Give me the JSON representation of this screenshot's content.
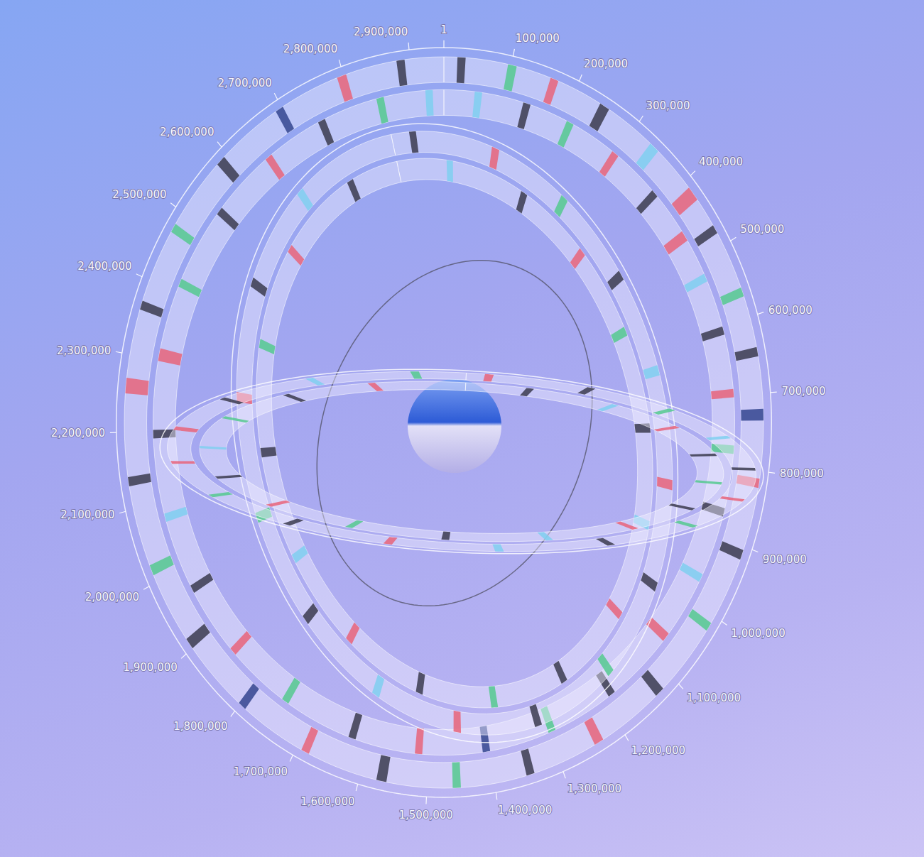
{
  "chart_data": {
    "type": "circular_genome",
    "xlim": [
      1,
      2950000
    ],
    "xticks": [
      1,
      {
        "value": 100000,
        "label": "100,000"
      },
      {
        "value": 200000,
        "label": "200,000"
      },
      {
        "value": 300000,
        "label": "300,000"
      },
      {
        "value": 400000,
        "label": "400,000"
      },
      {
        "value": 500000,
        "label": "500,000"
      },
      {
        "value": 600000,
        "label": "600,000"
      },
      {
        "value": 700000,
        "label": "700,000"
      },
      {
        "value": 800000,
        "label": "800,000"
      },
      {
        "value": 900000,
        "label": "900,000"
      },
      {
        "value": 1000000,
        "label": "1,000,000"
      },
      {
        "value": 1100000,
        "label": "1,100,000"
      },
      {
        "value": 1200000,
        "label": "1,200,000"
      },
      {
        "value": 1300000,
        "label": "1,300,000"
      },
      {
        "value": 1400000,
        "label": "1,400,000"
      },
      {
        "value": 1500000,
        "label": "1,500,000"
      },
      {
        "value": 1600000,
        "label": "1,600,000"
      },
      {
        "value": 1700000,
        "label": "1,700,000"
      },
      {
        "value": 1800000,
        "label": "1,800,000"
      },
      {
        "value": 1900000,
        "label": "1,900,000"
      },
      {
        "value": 2000000,
        "label": "2,000,000"
      },
      {
        "value": 2100000,
        "label": "2,100,000"
      },
      {
        "value": 2200000,
        "label": "2,200,000"
      },
      {
        "value": 2300000,
        "label": "2,300,000"
      },
      {
        "value": 2400000,
        "label": "2,400,000"
      },
      {
        "value": 2500000,
        "label": "2,500,000"
      },
      {
        "value": 2600000,
        "label": "2,600,000"
      },
      {
        "value": 2700000,
        "label": "2,700,000"
      },
      {
        "value": 2800000,
        "label": "2,800,000"
      },
      {
        "value": 2900000,
        "label": "2,900,000"
      }
    ],
    "rings": [
      {
        "tracks": [
          [
            [
              20000,
              32000,
              "#3b3b4f"
            ],
            [
              95000,
              108000,
              "#55c98f"
            ],
            [
              160000,
              172000,
              "#e8647a"
            ],
            [
              240000,
              255000,
              "#3b3b4f"
            ],
            [
              330000,
              345000,
              "#7fcff0"
            ],
            [
              410000,
              430000,
              "#e8647a"
            ],
            [
              470000,
              482000,
              "#3b3b4f"
            ],
            [
              560000,
              572000,
              "#55c98f"
            ],
            [
              640000,
              652000,
              "#3b3b4f"
            ],
            [
              720000,
              735000,
              "#34458f"
            ],
            [
              810000,
              822000,
              "#e8647a"
            ],
            [
              905000,
              918000,
              "#3b3b4f"
            ],
            [
              1010000,
              1022000,
              "#55c98f"
            ],
            [
              1120000,
              1134000,
              "#3b3b4f"
            ],
            [
              1230000,
              1244000,
              "#e8647a"
            ],
            [
              1340000,
              1352000,
              "#3b3b4f"
            ],
            [
              1450000,
              1462000,
              "#55c98f"
            ],
            [
              1560000,
              1575000,
              "#3b3b4f"
            ],
            [
              1680000,
              1692000,
              "#e8647a"
            ],
            [
              1790000,
              1802000,
              "#34458f"
            ],
            [
              1900000,
              1915000,
              "#3b3b4f"
            ],
            [
              2010000,
              2024000,
              "#55c98f"
            ],
            [
              2130000,
              2142000,
              "#3b3b4f"
            ],
            [
              2250000,
              2270000,
              "#e8647a"
            ],
            [
              2360000,
              2372000,
              "#3b3b4f"
            ],
            [
              2470000,
              2482000,
              "#55c98f"
            ],
            [
              2580000,
              2594000,
              "#3b3b4f"
            ],
            [
              2690000,
              2702000,
              "#34458f"
            ],
            [
              2790000,
              2804000,
              "#e8647a"
            ],
            [
              2880000,
              2892000,
              "#3b3b4f"
            ]
          ],
          [
            [
              50000,
              62000,
              "#7fcff0"
            ],
            [
              130000,
              142000,
              "#3b3b4f"
            ],
            [
              205000,
              217000,
              "#55c98f"
            ],
            [
              290000,
              302000,
              "#e8647a"
            ],
            [
              375000,
              387000,
              "#3b3b4f"
            ],
            [
              450000,
              466000,
              "#e8647a"
            ],
            [
              520000,
              532000,
              "#7fcff0"
            ],
            [
              600000,
              612000,
              "#3b3b4f"
            ],
            [
              690000,
              702000,
              "#e8647a"
            ],
            [
              770000,
              782000,
              "#55c98f"
            ],
            [
              860000,
              872000,
              "#3b3b4f"
            ],
            [
              960000,
              972000,
              "#7fcff0"
            ],
            [
              1060000,
              1074000,
              "#e8647a"
            ],
            [
              1180000,
              1192000,
              "#3b3b4f"
            ],
            [
              1290000,
              1302000,
              "#55c98f"
            ],
            [
              1400000,
              1412000,
              "#34458f"
            ],
            [
              1510000,
              1522000,
              "#e8647a"
            ],
            [
              1620000,
              1632000,
              "#3b3b4f"
            ],
            [
              1740000,
              1752000,
              "#55c98f"
            ],
            [
              1850000,
              1862000,
              "#e8647a"
            ],
            [
              1960000,
              1972000,
              "#3b3b4f"
            ],
            [
              2070000,
              2082000,
              "#7fcff0"
            ],
            [
              2190000,
              2202000,
              "#3b3b4f"
            ],
            [
              2300000,
              2318000,
              "#e8647a"
            ],
            [
              2410000,
              2422000,
              "#55c98f"
            ],
            [
              2530000,
              2542000,
              "#3b3b4f"
            ],
            [
              2640000,
              2652000,
              "#e8647a"
            ],
            [
              2740000,
              2752000,
              "#3b3b4f"
            ],
            [
              2840000,
              2852000,
              "#55c98f"
            ],
            [
              2920000,
              2932000,
              "#7fcff0"
            ]
          ]
        ]
      },
      {
        "tracks": [
          [
            [
              40000,
              55000,
              "#3b3b4f"
            ],
            [
              220000,
              236000,
              "#e8647a"
            ],
            [
              380000,
              395000,
              "#55c98f"
            ],
            [
              540000,
              556000,
              "#3b3b4f"
            ],
            [
              700000,
              716000,
              "#7fcff0"
            ],
            [
              880000,
              896000,
              "#e8647a"
            ],
            [
              1050000,
              1066000,
              "#3b3b4f"
            ],
            [
              1230000,
              1246000,
              "#55c98f"
            ],
            [
              1420000,
              1436000,
              "#3b3b4f"
            ],
            [
              1600000,
              1616000,
              "#e8647a"
            ],
            [
              1780000,
              1796000,
              "#7fcff0"
            ],
            [
              1960000,
              1976000,
              "#3b3b4f"
            ],
            [
              2140000,
              2156000,
              "#55c98f"
            ],
            [
              2330000,
              2346000,
              "#e8647a"
            ],
            [
              2520000,
              2536000,
              "#3b3b4f"
            ],
            [
              2710000,
              2726000,
              "#7fcff0"
            ]
          ],
          [
            [
              120000,
              135000,
              "#7fcff0"
            ],
            [
              300000,
              315000,
              "#3b3b4f"
            ],
            [
              460000,
              476000,
              "#e8647a"
            ],
            [
              620000,
              636000,
              "#55c98f"
            ],
            [
              790000,
              806000,
              "#3b3b4f"
            ],
            [
              960000,
              976000,
              "#7fcff0"
            ],
            [
              1140000,
              1156000,
              "#e8647a"
            ],
            [
              1330000,
              1346000,
              "#3b3b4f"
            ],
            [
              1510000,
              1526000,
              "#55c98f"
            ],
            [
              1690000,
              1706000,
              "#3b3b4f"
            ],
            [
              1870000,
              1886000,
              "#e8647a"
            ],
            [
              2050000,
              2066000,
              "#7fcff0"
            ],
            [
              2240000,
              2256000,
              "#3b3b4f"
            ],
            [
              2430000,
              2446000,
              "#55c98f"
            ],
            [
              2620000,
              2636000,
              "#e8647a"
            ],
            [
              2820000,
              2836000,
              "#3b3b4f"
            ]
          ]
        ]
      },
      {
        "tracks": [
          [
            [
              30000,
              44000,
              "#e8647a"
            ],
            [
              200000,
              214000,
              "#3b3b4f"
            ],
            [
              360000,
              374000,
              "#55c98f"
            ],
            [
              520000,
              534000,
              "#7fcff0"
            ],
            [
              690000,
              704000,
              "#3b3b4f"
            ],
            [
              860000,
              874000,
              "#e8647a"
            ],
            [
              1030000,
              1044000,
              "#55c98f"
            ],
            [
              1210000,
              1224000,
              "#3b3b4f"
            ],
            [
              1400000,
              1414000,
              "#7fcff0"
            ],
            [
              1580000,
              1594000,
              "#e8647a"
            ],
            [
              1760000,
              1774000,
              "#3b3b4f"
            ],
            [
              1940000,
              1954000,
              "#55c98f"
            ],
            [
              2120000,
              2134000,
              "#e8647a"
            ],
            [
              2300000,
              2320000,
              "#e8647a"
            ],
            [
              2490000,
              2504000,
              "#3b3b4f"
            ],
            [
              2680000,
              2694000,
              "#7fcff0"
            ],
            [
              2860000,
              2874000,
              "#55c98f"
            ]
          ],
          [
            [
              110000,
              124000,
              "#3b3b4f"
            ],
            [
              280000,
              294000,
              "#7fcff0"
            ],
            [
              440000,
              454000,
              "#e8647a"
            ],
            [
              610000,
              624000,
              "#3b3b4f"
            ],
            [
              780000,
              794000,
              "#55c98f"
            ],
            [
              950000,
              964000,
              "#3b3b4f"
            ],
            [
              1120000,
              1134000,
              "#e8647a"
            ],
            [
              1300000,
              1314000,
              "#7fcff0"
            ],
            [
              1490000,
              1504000,
              "#3b3b4f"
            ],
            [
              1670000,
              1684000,
              "#55c98f"
            ],
            [
              1850000,
              1864000,
              "#e8647a"
            ],
            [
              2030000,
              2044000,
              "#3b3b4f"
            ],
            [
              2210000,
              2224000,
              "#7fcff0"
            ],
            [
              2400000,
              2414000,
              "#55c98f"
            ],
            [
              2590000,
              2604000,
              "#3b3b4f"
            ],
            [
              2770000,
              2784000,
              "#e8647a"
            ]
          ]
        ]
      }
    ]
  }
}
